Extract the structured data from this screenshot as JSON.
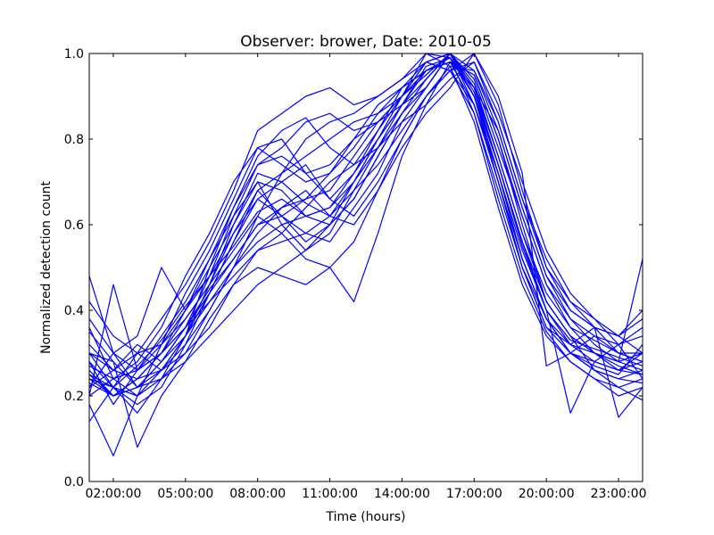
{
  "chart_data": {
    "type": "line",
    "title": "Observer: brower, Date: 2010-05",
    "xlabel": "Time (hours)",
    "ylabel": "Normalized detection count",
    "xlim": [
      1,
      24
    ],
    "ylim": [
      0,
      1
    ],
    "x_ticks": [
      {
        "value": 2,
        "label": "02:00:00"
      },
      {
        "value": 5,
        "label": "05:00:00"
      },
      {
        "value": 8,
        "label": "08:00:00"
      },
      {
        "value": 11,
        "label": "11:00:00"
      },
      {
        "value": 14,
        "label": "14:00:00"
      },
      {
        "value": 17,
        "label": "17:00:00"
      },
      {
        "value": 20,
        "label": "20:00:00"
      },
      {
        "value": 23,
        "label": "23:00:00"
      }
    ],
    "y_ticks": [
      {
        "value": 0.0,
        "label": "0.0"
      },
      {
        "value": 0.2,
        "label": "0.2"
      },
      {
        "value": 0.4,
        "label": "0.4"
      },
      {
        "value": 0.6,
        "label": "0.6"
      },
      {
        "value": 0.8,
        "label": "0.8"
      },
      {
        "value": 1.0,
        "label": "1.0"
      }
    ],
    "grid": false,
    "line_color": "#0000ff",
    "x": [
      1,
      2,
      3,
      4,
      5,
      6,
      7,
      8,
      9,
      10,
      11,
      12,
      13,
      14,
      15,
      16,
      17,
      18,
      19,
      20,
      21,
      22,
      23,
      24
    ],
    "series": [
      {
        "values": [
          0.3,
          0.22,
          0.27,
          0.33,
          0.41,
          0.48,
          0.55,
          0.63,
          0.66,
          0.62,
          0.6,
          0.66,
          0.76,
          0.86,
          0.94,
          1.0,
          0.92,
          0.76,
          0.58,
          0.44,
          0.36,
          0.33,
          0.3,
          0.28
        ]
      },
      {
        "values": [
          0.25,
          0.2,
          0.24,
          0.3,
          0.38,
          0.46,
          0.6,
          0.72,
          0.7,
          0.65,
          0.62,
          0.7,
          0.8,
          0.88,
          0.96,
          0.98,
          0.95,
          0.8,
          0.6,
          0.42,
          0.34,
          0.3,
          0.27,
          0.25
        ]
      },
      {
        "values": [
          0.48,
          0.3,
          0.22,
          0.28,
          0.36,
          0.45,
          0.52,
          0.6,
          0.62,
          0.58,
          0.56,
          0.64,
          0.72,
          0.84,
          0.92,
          1.0,
          0.9,
          0.72,
          0.52,
          0.38,
          0.32,
          0.3,
          0.28,
          0.3
        ]
      },
      {
        "values": [
          0.22,
          0.26,
          0.3,
          0.26,
          0.34,
          0.5,
          0.64,
          0.76,
          0.82,
          0.85,
          0.78,
          0.74,
          0.82,
          0.92,
          0.98,
          0.96,
          0.88,
          0.7,
          0.5,
          0.36,
          0.3,
          0.27,
          0.25,
          0.32
        ]
      },
      {
        "values": [
          0.2,
          0.24,
          0.2,
          0.32,
          0.44,
          0.54,
          0.66,
          0.78,
          0.74,
          0.7,
          0.72,
          0.78,
          0.86,
          0.9,
          1.0,
          0.99,
          0.86,
          0.66,
          0.48,
          0.35,
          0.28,
          0.24,
          0.2,
          0.22
        ]
      },
      {
        "values": [
          0.35,
          0.28,
          0.22,
          0.24,
          0.3,
          0.4,
          0.5,
          0.58,
          0.64,
          0.66,
          0.68,
          0.76,
          0.84,
          0.9,
          0.95,
          1.0,
          0.94,
          0.78,
          0.62,
          0.46,
          0.38,
          0.34,
          0.32,
          0.36
        ]
      },
      {
        "values": [
          0.28,
          0.18,
          0.26,
          0.34,
          0.42,
          0.52,
          0.62,
          0.7,
          0.6,
          0.54,
          0.58,
          0.68,
          0.78,
          0.88,
          0.97,
          0.99,
          0.9,
          0.74,
          0.56,
          0.4,
          0.33,
          0.31,
          0.29,
          0.27
        ]
      },
      {
        "values": [
          0.24,
          0.22,
          0.18,
          0.22,
          0.32,
          0.44,
          0.56,
          0.68,
          0.72,
          0.76,
          0.8,
          0.84,
          0.86,
          0.92,
          0.96,
          0.98,
          0.92,
          0.82,
          0.64,
          0.48,
          0.4,
          0.36,
          0.34,
          0.4
        ]
      },
      {
        "values": [
          0.42,
          0.34,
          0.3,
          0.32,
          0.38,
          0.46,
          0.54,
          0.62,
          0.58,
          0.52,
          0.5,
          0.56,
          0.68,
          0.8,
          0.9,
          0.97,
          0.96,
          0.84,
          0.66,
          0.52,
          0.42,
          0.38,
          0.34,
          0.3
        ]
      },
      {
        "values": [
          0.18,
          0.06,
          0.2,
          0.26,
          0.34,
          0.42,
          0.5,
          0.56,
          0.6,
          0.62,
          0.64,
          0.7,
          0.78,
          0.86,
          0.92,
          1.0,
          0.91,
          0.74,
          0.56,
          0.42,
          0.34,
          0.26,
          0.22,
          0.19
        ]
      },
      {
        "values": [
          0.27,
          0.24,
          0.28,
          0.36,
          0.48,
          0.58,
          0.7,
          0.78,
          0.8,
          0.72,
          0.66,
          0.72,
          0.82,
          0.9,
          0.98,
          1.0,
          0.88,
          0.7,
          0.52,
          0.38,
          0.3,
          0.26,
          0.24,
          0.26
        ]
      },
      {
        "values": [
          0.32,
          0.26,
          0.24,
          0.26,
          0.3,
          0.36,
          0.46,
          0.54,
          0.58,
          0.64,
          0.7,
          0.74,
          0.78,
          0.84,
          0.88,
          0.94,
          0.98,
          0.86,
          0.7,
          0.54,
          0.44,
          0.38,
          0.32,
          0.34
        ]
      },
      {
        "values": [
          0.14,
          0.22,
          0.3,
          0.38,
          0.46,
          0.56,
          0.68,
          0.82,
          0.86,
          0.9,
          0.92,
          0.88,
          0.9,
          0.94,
          1.0,
          0.97,
          0.84,
          0.64,
          0.46,
          0.34,
          0.28,
          0.24,
          0.22,
          0.24
        ]
      },
      {
        "values": [
          0.3,
          0.28,
          0.08,
          0.2,
          0.28,
          0.38,
          0.46,
          0.5,
          0.48,
          0.46,
          0.5,
          0.42,
          0.58,
          0.76,
          0.88,
          0.98,
          0.95,
          0.8,
          0.62,
          0.46,
          0.36,
          0.3,
          0.26,
          0.28
        ]
      },
      {
        "values": [
          0.26,
          0.2,
          0.22,
          0.28,
          0.36,
          0.44,
          0.52,
          0.6,
          0.64,
          0.68,
          0.62,
          0.6,
          0.68,
          0.78,
          0.86,
          0.92,
          1.0,
          0.9,
          0.72,
          0.27,
          0.3,
          0.34,
          0.3,
          0.3
        ]
      },
      {
        "values": [
          0.22,
          0.3,
          0.34,
          0.5,
          0.4,
          0.48,
          0.58,
          0.66,
          0.62,
          0.66,
          0.72,
          0.8,
          0.84,
          0.88,
          0.92,
          1.0,
          0.92,
          0.74,
          0.55,
          0.4,
          0.16,
          0.28,
          0.32,
          0.24
        ]
      },
      {
        "values": [
          0.36,
          0.24,
          0.26,
          0.3,
          0.36,
          0.48,
          0.62,
          0.74,
          0.76,
          0.72,
          0.74,
          0.8,
          0.88,
          0.92,
          0.96,
          0.99,
          0.9,
          0.7,
          0.5,
          0.36,
          0.32,
          0.36,
          0.15,
          0.22
        ]
      },
      {
        "values": [
          0.28,
          0.22,
          0.2,
          0.24,
          0.28,
          0.34,
          0.4,
          0.46,
          0.5,
          0.54,
          0.6,
          0.66,
          0.76,
          0.86,
          0.94,
          1.0,
          0.96,
          0.82,
          0.64,
          0.48,
          0.38,
          0.32,
          0.28,
          0.52
        ]
      },
      {
        "values": [
          0.2,
          0.46,
          0.26,
          0.32,
          0.4,
          0.5,
          0.6,
          0.7,
          0.68,
          0.62,
          0.64,
          0.72,
          0.8,
          0.88,
          0.94,
          1.0,
          0.93,
          0.76,
          0.58,
          0.42,
          0.34,
          0.3,
          0.28,
          0.26
        ]
      },
      {
        "values": [
          0.24,
          0.2,
          0.24,
          0.3,
          0.4,
          0.52,
          0.64,
          0.74,
          0.78,
          0.84,
          0.86,
          0.82,
          0.84,
          0.9,
          0.96,
          0.98,
          0.88,
          0.72,
          0.54,
          0.4,
          0.32,
          0.28,
          0.26,
          0.3
        ]
      },
      {
        "values": [
          0.3,
          0.26,
          0.32,
          0.28,
          0.34,
          0.44,
          0.56,
          0.66,
          0.7,
          0.74,
          0.66,
          0.62,
          0.7,
          0.8,
          0.9,
          0.96,
          0.98,
          0.84,
          0.66,
          0.5,
          0.42,
          0.36,
          0.3,
          0.28
        ]
      },
      {
        "values": [
          0.23,
          0.2,
          0.22,
          0.26,
          0.32,
          0.4,
          0.5,
          0.62,
          0.72,
          0.8,
          0.84,
          0.86,
          0.9,
          0.94,
          0.98,
          1.0,
          0.9,
          0.72,
          0.52,
          0.38,
          0.3,
          0.26,
          0.24,
          0.23
        ]
      },
      {
        "values": [
          0.38,
          0.3,
          0.26,
          0.3,
          0.36,
          0.42,
          0.48,
          0.54,
          0.56,
          0.58,
          0.62,
          0.68,
          0.74,
          0.82,
          0.9,
          0.96,
          1.0,
          0.88,
          0.68,
          0.5,
          0.4,
          0.36,
          0.34,
          0.38
        ]
      },
      {
        "values": [
          0.25,
          0.22,
          0.16,
          0.24,
          0.34,
          0.46,
          0.58,
          0.68,
          0.62,
          0.56,
          0.6,
          0.7,
          0.8,
          0.9,
          0.98,
          0.96,
          0.86,
          0.68,
          0.5,
          0.38,
          0.3,
          0.28,
          0.26,
          0.25
        ]
      }
    ]
  }
}
